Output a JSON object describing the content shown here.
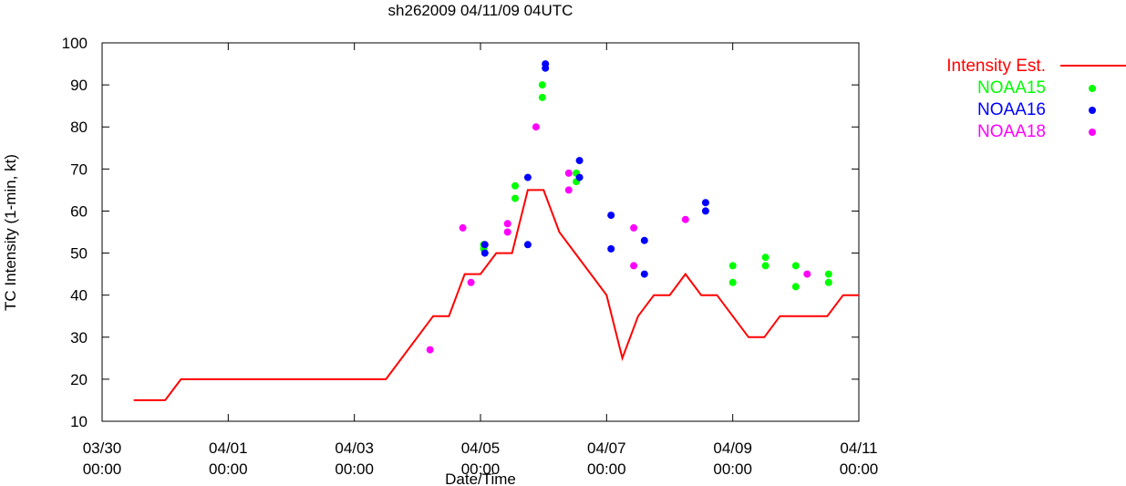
{
  "chart_data": {
    "type": "line",
    "title": "sh262009 04/11/09 04UTC",
    "xlabel": "Date/Time",
    "ylabel": "TC Intensity (1-min, kt)",
    "ylim": [
      10,
      100
    ],
    "yticks": [
      10,
      20,
      30,
      40,
      50,
      60,
      70,
      80,
      90,
      100
    ],
    "xlim": [
      0,
      12
    ],
    "x_unit": "days since 03/30 00:00",
    "xticks": [
      {
        "x": 0,
        "line1": "03/30",
        "line2": "00:00"
      },
      {
        "x": 2,
        "line1": "04/01",
        "line2": "00:00"
      },
      {
        "x": 4,
        "line1": "04/03",
        "line2": "00:00"
      },
      {
        "x": 6,
        "line1": "04/05",
        "line2": "00:00"
      },
      {
        "x": 8,
        "line1": "04/07",
        "line2": "00:00"
      },
      {
        "x": 10,
        "line1": "04/09",
        "line2": "00:00"
      },
      {
        "x": 12,
        "line1": "04/11",
        "line2": "00:00"
      }
    ],
    "grid": false,
    "legend_position": "right",
    "series": [
      {
        "name": "Intensity Est.",
        "kind": "line",
        "color": "#ff0000",
        "points": [
          [
            0.5,
            15
          ],
          [
            1.0,
            15
          ],
          [
            1.25,
            20
          ],
          [
            4.5,
            20
          ],
          [
            5.25,
            35
          ],
          [
            5.5,
            35
          ],
          [
            5.75,
            45
          ],
          [
            6.0,
            45
          ],
          [
            6.25,
            50
          ],
          [
            6.5,
            50
          ],
          [
            6.75,
            65
          ],
          [
            7.0,
            65
          ],
          [
            7.25,
            55
          ],
          [
            8.0,
            40
          ],
          [
            8.25,
            25
          ],
          [
            8.5,
            35
          ],
          [
            8.75,
            40
          ],
          [
            9.0,
            40
          ],
          [
            9.25,
            45
          ],
          [
            9.5,
            40
          ],
          [
            9.75,
            40
          ],
          [
            10.25,
            30
          ],
          [
            10.5,
            30
          ],
          [
            10.75,
            35
          ],
          [
            11.5,
            35
          ],
          [
            11.75,
            40
          ],
          [
            12.0,
            40
          ]
        ]
      },
      {
        "name": "NOAA15",
        "kind": "points",
        "color": "#00ff00",
        "points": [
          [
            6.05,
            52
          ],
          [
            6.05,
            51
          ],
          [
            6.55,
            66
          ],
          [
            6.55,
            63
          ],
          [
            6.98,
            90
          ],
          [
            6.98,
            87
          ],
          [
            7.52,
            69
          ],
          [
            7.52,
            67
          ],
          [
            10.0,
            47
          ],
          [
            10.0,
            43
          ],
          [
            10.52,
            49
          ],
          [
            10.52,
            47
          ],
          [
            11.0,
            47
          ],
          [
            11.0,
            42
          ],
          [
            11.52,
            45
          ],
          [
            11.52,
            43
          ]
        ]
      },
      {
        "name": "NOAA16",
        "kind": "points",
        "color": "#0000ff",
        "points": [
          [
            6.07,
            52
          ],
          [
            6.07,
            50
          ],
          [
            6.75,
            68
          ],
          [
            6.75,
            52
          ],
          [
            7.03,
            95
          ],
          [
            7.03,
            94
          ],
          [
            7.57,
            72
          ],
          [
            7.57,
            68
          ],
          [
            8.07,
            59
          ],
          [
            8.07,
            51
          ],
          [
            8.6,
            53
          ],
          [
            8.6,
            45
          ],
          [
            9.57,
            62
          ],
          [
            9.57,
            60
          ]
        ]
      },
      {
        "name": "NOAA18",
        "kind": "points",
        "color": "#ff00ff",
        "points": [
          [
            5.2,
            27
          ],
          [
            5.72,
            56
          ],
          [
            5.85,
            43
          ],
          [
            6.43,
            57
          ],
          [
            6.43,
            55
          ],
          [
            6.88,
            80
          ],
          [
            7.4,
            69
          ],
          [
            7.4,
            65
          ],
          [
            8.43,
            56
          ],
          [
            8.43,
            47
          ],
          [
            9.25,
            58
          ],
          [
            11.18,
            45
          ]
        ]
      }
    ]
  }
}
